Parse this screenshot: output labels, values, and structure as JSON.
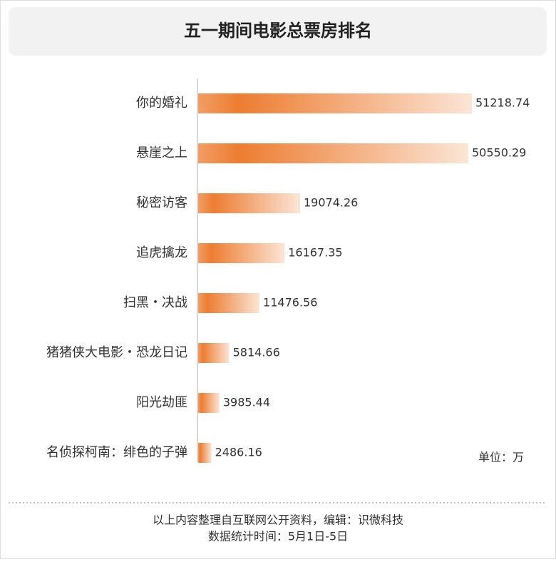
{
  "chart_data": {
    "type": "bar",
    "orientation": "horizontal",
    "title": "五一期间电影总票房排名",
    "categories": [
      "你的婚礼",
      "悬崖之上",
      "秘密访客",
      "追虎擒龙",
      "扫黑・决战",
      "猪猪侠大电影・恐龙日记",
      "阳光劫匪",
      "名侦探柯南：绯色的子弹"
    ],
    "values": [
      51218.74,
      50550.29,
      19074.26,
      16167.35,
      11476.56,
      5814.66,
      3985.44,
      2486.16
    ],
    "color": "#ed7d31",
    "unit_label": "单位：万",
    "footer": [
      "以上内容整理自互联网公开资料，编辑：识微科技",
      "数据统计时间：5月1日-5日"
    ]
  }
}
